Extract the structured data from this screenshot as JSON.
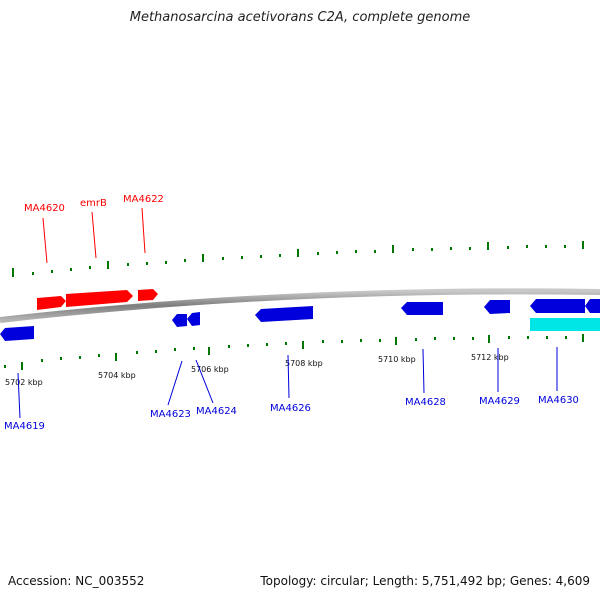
{
  "title": "Methanosarcina acetivorans C2A, complete genome",
  "footer": {
    "accession": "Accession: NC_003552",
    "summary": "Topology: circular; Length: 5,751,492 bp; Genes: 4,609"
  },
  "colors": {
    "forward_gene": "#ff0000",
    "reverse_gene": "#0000dd",
    "rna_feature": "#00e5e5",
    "tick": "#007700",
    "backbone": "#8c8c8c"
  },
  "scale": {
    "labels": [
      "5702 kbp",
      "5704 kbp",
      "5706 kbp",
      "5708 kbp",
      "5710 kbp",
      "5712 kbp"
    ]
  },
  "genes_forward": [
    {
      "label": "MA4620"
    },
    {
      "label": "emrB"
    },
    {
      "label": "MA4622"
    }
  ],
  "genes_reverse": [
    {
      "label": "MA4619"
    },
    {
      "label": "MA4623"
    },
    {
      "label": "MA4624"
    },
    {
      "label": "MA4626"
    },
    {
      "label": "MA4628"
    },
    {
      "label": "MA4629"
    },
    {
      "label": "MA4630"
    }
  ]
}
